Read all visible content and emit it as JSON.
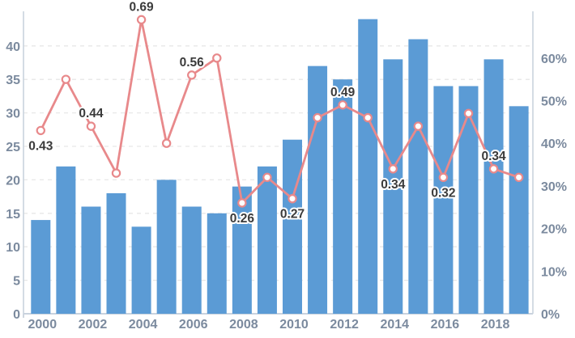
{
  "chart_data": {
    "type": "bar",
    "subtype": "bar-line-combo",
    "title": "",
    "legend": "none",
    "grid": {
      "horizontal": true,
      "style": "dashed"
    },
    "categories": [
      2000,
      2001,
      2002,
      2003,
      2004,
      2005,
      2006,
      2007,
      2008,
      2009,
      2010,
      2011,
      2012,
      2013,
      2014,
      2015,
      2016,
      2017,
      2018,
      2019
    ],
    "series": [
      {
        "name": "bar-series",
        "type": "bar",
        "axis": "left",
        "values": [
          14,
          22,
          16,
          18,
          13,
          20,
          16,
          15,
          19,
          22,
          26,
          37,
          35,
          44,
          38,
          41,
          34,
          34,
          38,
          31
        ]
      },
      {
        "name": "line-series",
        "type": "line",
        "axis": "right",
        "values": [
          0.43,
          0.55,
          0.44,
          0.33,
          0.69,
          0.4,
          0.56,
          0.6,
          0.26,
          0.32,
          0.27,
          0.46,
          0.49,
          0.46,
          0.34,
          0.44,
          0.32,
          0.47,
          0.34,
          0.32
        ],
        "point_labels": [
          {
            "category": 2000,
            "text": "0.43",
            "placement": "below"
          },
          {
            "category": 2002,
            "text": "0.44",
            "placement": "above"
          },
          {
            "category": 2004,
            "text": "0.69",
            "placement": "above"
          },
          {
            "category": 2006,
            "text": "0.56",
            "placement": "above"
          },
          {
            "category": 2008,
            "text": "0.26",
            "placement": "below"
          },
          {
            "category": 2010,
            "text": "0.27",
            "placement": "below"
          },
          {
            "category": 2012,
            "text": "0.49",
            "placement": "above"
          },
          {
            "category": 2014,
            "text": "0.34",
            "placement": "below"
          },
          {
            "category": 2016,
            "text": "0.32",
            "placement": "below"
          },
          {
            "category": 2018,
            "text": "0.34",
            "placement": "above"
          }
        ]
      }
    ],
    "left_axis": {
      "min": 0,
      "max": 45,
      "tick_step": 5,
      "tick_labels": [
        "0",
        "5",
        "10",
        "15",
        "20",
        "25",
        "30",
        "35",
        "40"
      ]
    },
    "right_axis": {
      "min": 0,
      "max": 0.7,
      "tick_labels": [
        "0%",
        "10%",
        "20%",
        "30%",
        "40%",
        "50%",
        "60%"
      ]
    },
    "x_axis": {
      "tick_labels": [
        "2000",
        "2002",
        "2004",
        "2006",
        "2008",
        "2010",
        "2012",
        "2014",
        "2016",
        "2018"
      ],
      "label_every": 2
    }
  },
  "colors": {
    "bar": "#5B9BD5",
    "line": "#E8898B",
    "marker_fill": "#FFFFFF",
    "axis_text": "#7B8A9E",
    "data_label_text": "#3B3B3B",
    "data_label_halo": "#FFFFFF",
    "gridline": "#E7E7E7",
    "axis_line": "#C9D3DE",
    "background": "#FFFFFF"
  }
}
